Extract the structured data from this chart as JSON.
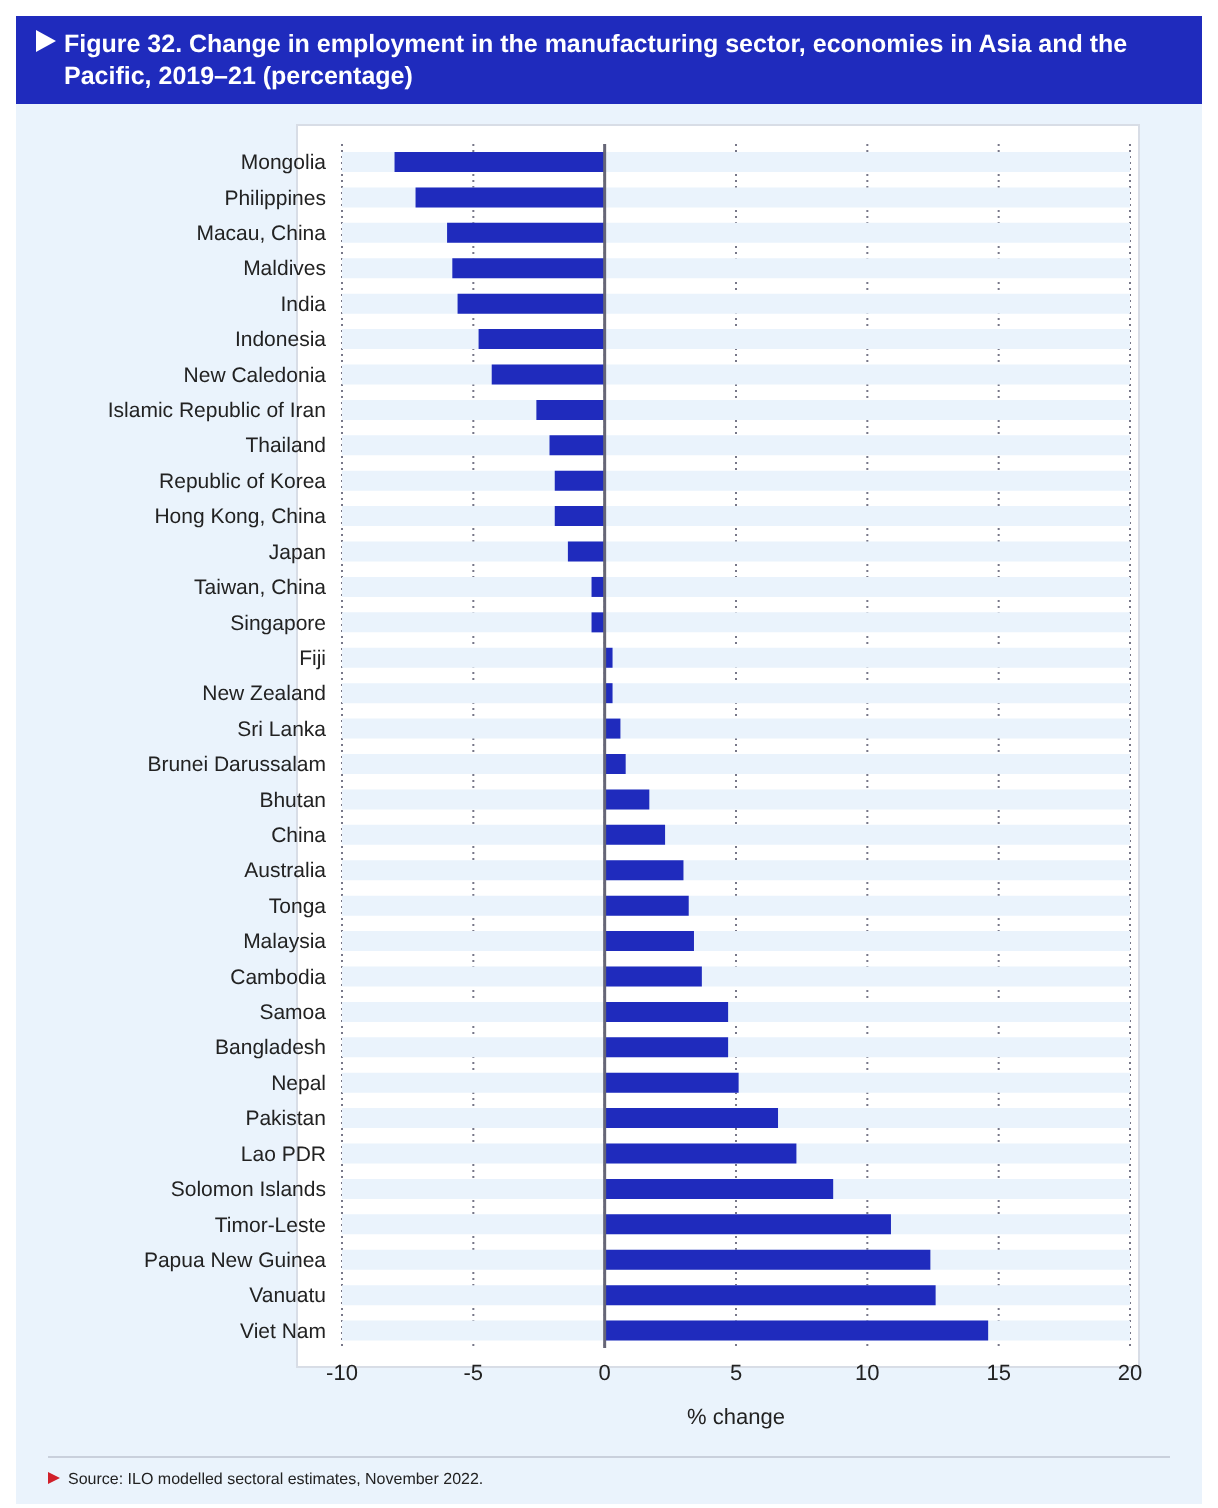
{
  "chart_data": {
    "type": "bar",
    "orientation": "horizontal",
    "title": "Figure 32. Change in employment in the manufacturing sector, economies in Asia and the Pacific, 2019–21 (percentage)",
    "categories": [
      "Mongolia",
      "Philippines",
      "Macau, China",
      "Maldives",
      "India",
      "Indonesia",
      "New Caledonia",
      "Islamic Republic of Iran",
      "Thailand",
      "Republic of Korea",
      "Hong Kong, China",
      "Japan",
      "Taiwan, China",
      "Singapore",
      "Fiji",
      "New Zealand",
      "Sri Lanka",
      "Brunei Darussalam",
      "Bhutan",
      "China",
      "Australia",
      "Tonga",
      "Malaysia",
      "Cambodia",
      "Samoa",
      "Bangladesh",
      "Nepal",
      "Pakistan",
      "Lao PDR",
      "Solomon Islands",
      "Timor-Leste",
      "Papua New Guinea",
      "Vanuatu",
      "Viet Nam"
    ],
    "values": [
      -8.0,
      -7.2,
      -6.0,
      -5.8,
      -5.6,
      -4.8,
      -4.3,
      -2.6,
      -2.1,
      -1.9,
      -1.9,
      -1.4,
      -0.5,
      -0.5,
      0.3,
      0.3,
      0.6,
      0.8,
      1.7,
      2.3,
      3.0,
      3.2,
      3.4,
      3.7,
      4.7,
      4.7,
      5.1,
      6.6,
      7.3,
      8.7,
      10.9,
      12.4,
      12.6,
      14.6
    ],
    "color": "#1f2bbd",
    "xlabel": "% change",
    "xlim": [
      -10,
      20
    ],
    "xticks": [
      -10,
      -5,
      0,
      5,
      10,
      15,
      20
    ],
    "grid": "x",
    "ref_lines": [
      {
        "axis": "x",
        "value": 0,
        "color": "#666677"
      }
    ],
    "annotations": [
      "Source: ILO modelled sectoral estimates, November 2022."
    ]
  }
}
